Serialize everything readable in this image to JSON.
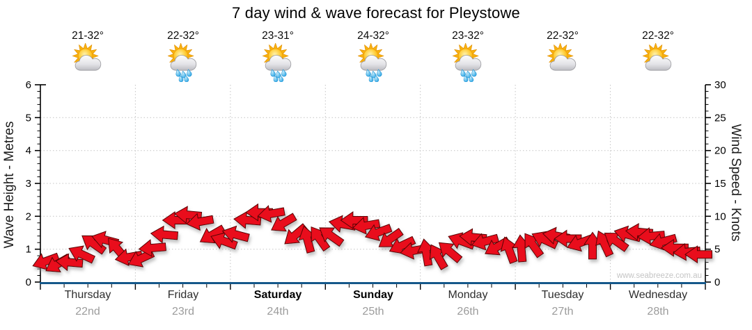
{
  "title": "7 day wind & wave forecast for Pleystowe",
  "watermark": "www.seabreeze.com.au",
  "left_axis": {
    "title": "Wave Height - Metres",
    "min": 0,
    "max": 6,
    "major_ticks": [
      0,
      1,
      2,
      3,
      4,
      5,
      6
    ],
    "minor_step": 0.2
  },
  "right_axis": {
    "title": "Wind Speed - Knots",
    "min": 0,
    "max": 30,
    "major_ticks": [
      0,
      5,
      10,
      15,
      20,
      25,
      30
    ],
    "minor_step": 1
  },
  "days": [
    {
      "name": "Thursday",
      "date": "22nd",
      "temp": "21-32°",
      "icon": "sun-cloud-icon",
      "weekend": false
    },
    {
      "name": "Friday",
      "date": "23rd",
      "temp": "22-32°",
      "icon": "sun-cloud-rain-icon",
      "weekend": false
    },
    {
      "name": "Saturday",
      "date": "24th",
      "temp": "23-31°",
      "icon": "sun-cloud-rain-icon",
      "weekend": true
    },
    {
      "name": "Sunday",
      "date": "25th",
      "temp": "24-32°",
      "icon": "sun-cloud-rain-icon",
      "weekend": true
    },
    {
      "name": "Monday",
      "date": "26th",
      "temp": "23-32°",
      "icon": "sun-cloud-rain-icon",
      "weekend": false
    },
    {
      "name": "Tuesday",
      "date": "27th",
      "temp": "22-32°",
      "icon": "sun-cloud-icon",
      "weekend": false
    },
    {
      "name": "Wednesday",
      "date": "28th",
      "temp": "22-32°",
      "icon": "sun-cloud-icon",
      "weekend": false
    }
  ],
  "chart_data": {
    "type": "wind-arrow-series",
    "title": "7 day wind & wave forecast for Pleystowe",
    "x_categories": [
      "Thursday 22nd",
      "Friday 23rd",
      "Saturday 24th",
      "Sunday 25th",
      "Monday 26th",
      "Tuesday 27th",
      "Wednesday 28th"
    ],
    "samples_per_day": 8,
    "y_right_label": "Wind Speed - Knots",
    "y_right_range": [
      0,
      30
    ],
    "y_left_label": "Wave Height - Metres",
    "y_left_range": [
      0,
      6
    ],
    "grid": "dotted horizontal lines at 1-5 m (5-25 kn), dotted vertical lines at day boundaries",
    "legend": "red arrows show wind speed (height on right axis, knots) and wind direction (arrow rotation, degrees clockwise; 180 = pointing left/west on screen)",
    "points_kn_deg": [
      [
        3.2,
        160
      ],
      [
        2.8,
        150
      ],
      [
        3.0,
        185
      ],
      [
        4.2,
        205
      ],
      [
        5.8,
        215
      ],
      [
        6.4,
        195
      ],
      [
        5.0,
        230
      ],
      [
        3.8,
        170
      ],
      [
        3.6,
        155
      ],
      [
        5.2,
        175
      ],
      [
        7.2,
        185
      ],
      [
        9.4,
        180
      ],
      [
        10.2,
        185
      ],
      [
        9.2,
        170
      ],
      [
        7.2,
        150
      ],
      [
        6.2,
        200
      ],
      [
        7.2,
        195
      ],
      [
        9.4,
        185
      ],
      [
        10.6,
        180
      ],
      [
        10.4,
        170
      ],
      [
        9.0,
        150
      ],
      [
        7.2,
        140
      ],
      [
        6.4,
        255
      ],
      [
        6.6,
        235
      ],
      [
        7.0,
        215
      ],
      [
        8.8,
        190
      ],
      [
        9.4,
        180
      ],
      [
        8.6,
        170
      ],
      [
        7.6,
        160
      ],
      [
        6.6,
        145
      ],
      [
        5.6,
        155
      ],
      [
        4.8,
        170
      ],
      [
        4.4,
        260
      ],
      [
        3.8,
        240
      ],
      [
        4.6,
        220
      ],
      [
        6.2,
        200
      ],
      [
        6.8,
        185
      ],
      [
        6.2,
        165
      ],
      [
        5.4,
        150
      ],
      [
        4.8,
        250
      ],
      [
        5.0,
        265
      ],
      [
        5.6,
        235
      ],
      [
        6.4,
        205
      ],
      [
        7.0,
        190
      ],
      [
        6.6,
        180
      ],
      [
        6.0,
        160
      ],
      [
        5.4,
        270
      ],
      [
        5.8,
        245
      ],
      [
        6.2,
        215
      ],
      [
        7.2,
        195
      ],
      [
        7.6,
        185
      ],
      [
        7.0,
        175
      ],
      [
        6.2,
        165
      ],
      [
        5.2,
        180
      ],
      [
        4.6,
        175
      ],
      [
        4.2,
        180
      ]
    ]
  },
  "colors": {
    "arrow": "#e90f1e",
    "arrow_outline": "#5a0505",
    "x_axis": "#15588a",
    "grid": "#c4c4c4",
    "axis_line": "#000000",
    "day_text": "#2e2e2e",
    "date_text": "#9c9c9c",
    "watermark_text": "#c5c5c5",
    "sun": "#f7b010",
    "cloud": "#c2c2c6",
    "raindrop": "#30a8e6"
  }
}
